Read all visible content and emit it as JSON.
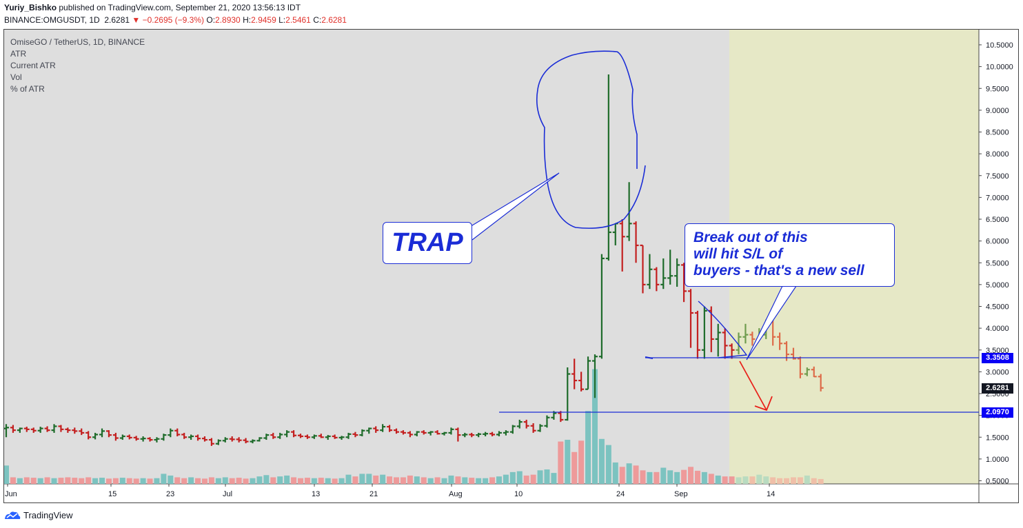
{
  "header": {
    "author": "Yuriy_Bishko",
    "published_text": "published on TradingView.com, September 21, 2020 13:56:13 IDT",
    "symbol": "BINANCE:OMGUSDT, 1D",
    "last": "2.6281",
    "change": "▼ −0.2695 (−9.3%)",
    "open_label": "O:",
    "open": "2.8930",
    "high_label": "H:",
    "high": "2.9459",
    "low_label": "L:",
    "low": "2.5461",
    "close_label": "C:",
    "close": "2.6281"
  },
  "legend": {
    "title": "OmiseGO / TetherUS, 1D, BINANCE",
    "items": [
      "ATR",
      "Current ATR",
      "Vol",
      "% of ATR"
    ]
  },
  "annotations": {
    "trap": "TRAP",
    "break_lines": [
      "Break out of this",
      "will hit S/L of",
      "buyers - that's a new sell"
    ]
  },
  "price_badges": {
    "level_upper": "3.3508",
    "last_price": "2.6281",
    "level_lower": "2.0970"
  },
  "footer": {
    "brand": "TradingView"
  },
  "colors": {
    "up": "#1e6b2a",
    "down": "#c31f1f",
    "up_faded": "#6f9c4e",
    "down_faded": "#dd6a48",
    "vol_up": "#7cc3c0",
    "vol_down": "#ee9a9a",
    "vol_up_faded": "#b9dbc0",
    "vol_down_faded": "#f0bfa8",
    "drawing": "#1a2cd6",
    "arrow": "#e8211a",
    "background": "#dedede",
    "highlight_zone": "#e6e8c6"
  },
  "chart_data": {
    "type": "ohlc",
    "y_axis": {
      "ticks": [
        "0.5000",
        "1.0000",
        "1.5000",
        "2.0000",
        "2.5000",
        "3.0000",
        "3.5000",
        "4.0000",
        "4.5000",
        "5.0000",
        "5.5000",
        "6.0000",
        "6.5000",
        "7.0000",
        "7.5000",
        "8.0000",
        "8.5000",
        "9.0000",
        "9.5000",
        "10.0000",
        "10.5000"
      ]
    },
    "x_axis": {
      "tick_labels": [
        "Jun",
        "15",
        "23",
        "Jul",
        "13",
        "21",
        "Aug",
        "10",
        "24",
        "Sep",
        "14"
      ]
    },
    "horizontal_levels": [
      3.3508,
      2.097
    ],
    "bars": [
      [
        1.7,
        1.8,
        1.5,
        1.72
      ],
      [
        1.72,
        1.78,
        1.6,
        1.66
      ],
      [
        1.66,
        1.72,
        1.6,
        1.7
      ],
      [
        1.7,
        1.74,
        1.62,
        1.68
      ],
      [
        1.68,
        1.72,
        1.6,
        1.65
      ],
      [
        1.65,
        1.74,
        1.6,
        1.7
      ],
      [
        1.7,
        1.75,
        1.62,
        1.66
      ],
      [
        1.66,
        1.8,
        1.6,
        1.75
      ],
      [
        1.75,
        1.78,
        1.62,
        1.68
      ],
      [
        1.68,
        1.72,
        1.6,
        1.66
      ],
      [
        1.66,
        1.72,
        1.58,
        1.64
      ],
      [
        1.64,
        1.7,
        1.55,
        1.6
      ],
      [
        1.6,
        1.64,
        1.45,
        1.5
      ],
      [
        1.5,
        1.6,
        1.45,
        1.56
      ],
      [
        1.56,
        1.7,
        1.5,
        1.64
      ],
      [
        1.64,
        1.66,
        1.5,
        1.55
      ],
      [
        1.55,
        1.6,
        1.42,
        1.48
      ],
      [
        1.48,
        1.56,
        1.44,
        1.52
      ],
      [
        1.52,
        1.56,
        1.45,
        1.49
      ],
      [
        1.49,
        1.53,
        1.42,
        1.46
      ],
      [
        1.46,
        1.52,
        1.4,
        1.47
      ],
      [
        1.47,
        1.5,
        1.4,
        1.44
      ],
      [
        1.44,
        1.5,
        1.38,
        1.46
      ],
      [
        1.46,
        1.58,
        1.42,
        1.55
      ],
      [
        1.55,
        1.7,
        1.5,
        1.65
      ],
      [
        1.65,
        1.7,
        1.52,
        1.56
      ],
      [
        1.56,
        1.6,
        1.46,
        1.5
      ],
      [
        1.5,
        1.56,
        1.44,
        1.52
      ],
      [
        1.52,
        1.56,
        1.42,
        1.47
      ],
      [
        1.47,
        1.52,
        1.4,
        1.44
      ],
      [
        1.44,
        1.48,
        1.3,
        1.35
      ],
      [
        1.35,
        1.45,
        1.32,
        1.42
      ],
      [
        1.42,
        1.5,
        1.38,
        1.46
      ],
      [
        1.46,
        1.52,
        1.4,
        1.45
      ],
      [
        1.45,
        1.5,
        1.38,
        1.43
      ],
      [
        1.43,
        1.48,
        1.36,
        1.4
      ],
      [
        1.4,
        1.45,
        1.36,
        1.42
      ],
      [
        1.42,
        1.5,
        1.4,
        1.48
      ],
      [
        1.48,
        1.58,
        1.44,
        1.55
      ],
      [
        1.55,
        1.6,
        1.46,
        1.5
      ],
      [
        1.5,
        1.6,
        1.46,
        1.56
      ],
      [
        1.56,
        1.66,
        1.5,
        1.62
      ],
      [
        1.62,
        1.66,
        1.5,
        1.54
      ],
      [
        1.54,
        1.58,
        1.48,
        1.52
      ],
      [
        1.52,
        1.56,
        1.46,
        1.5
      ],
      [
        1.5,
        1.56,
        1.46,
        1.53
      ],
      [
        1.53,
        1.58,
        1.48,
        1.5
      ],
      [
        1.5,
        1.55,
        1.44,
        1.52
      ],
      [
        1.52,
        1.56,
        1.46,
        1.49
      ],
      [
        1.49,
        1.53,
        1.44,
        1.5
      ],
      [
        1.5,
        1.6,
        1.46,
        1.57
      ],
      [
        1.57,
        1.62,
        1.5,
        1.55
      ],
      [
        1.55,
        1.68,
        1.52,
        1.65
      ],
      [
        1.65,
        1.72,
        1.58,
        1.7
      ],
      [
        1.7,
        1.75,
        1.6,
        1.66
      ],
      [
        1.66,
        1.8,
        1.62,
        1.74
      ],
      [
        1.74,
        1.78,
        1.62,
        1.66
      ],
      [
        1.66,
        1.7,
        1.58,
        1.62
      ],
      [
        1.62,
        1.66,
        1.56,
        1.6
      ],
      [
        1.6,
        1.64,
        1.5,
        1.56
      ],
      [
        1.56,
        1.64,
        1.52,
        1.62
      ],
      [
        1.62,
        1.66,
        1.56,
        1.6
      ],
      [
        1.6,
        1.64,
        1.54,
        1.62
      ],
      [
        1.62,
        1.66,
        1.56,
        1.58
      ],
      [
        1.58,
        1.62,
        1.54,
        1.6
      ],
      [
        1.6,
        1.72,
        1.56,
        1.68
      ],
      [
        1.68,
        1.72,
        1.4,
        1.55
      ],
      [
        1.55,
        1.6,
        1.5,
        1.56
      ],
      [
        1.56,
        1.6,
        1.5,
        1.55
      ],
      [
        1.55,
        1.6,
        1.5,
        1.57
      ],
      [
        1.57,
        1.62,
        1.52,
        1.58
      ],
      [
        1.58,
        1.62,
        1.52,
        1.56
      ],
      [
        1.56,
        1.64,
        1.52,
        1.6
      ],
      [
        1.6,
        1.66,
        1.54,
        1.62
      ],
      [
        1.62,
        1.78,
        1.58,
        1.75
      ],
      [
        1.75,
        1.9,
        1.7,
        1.85
      ],
      [
        1.85,
        1.9,
        1.7,
        1.76
      ],
      [
        1.76,
        1.82,
        1.6,
        1.65
      ],
      [
        1.65,
        1.8,
        1.62,
        1.76
      ],
      [
        1.76,
        2.0,
        1.72,
        1.95
      ],
      [
        1.95,
        2.1,
        1.9,
        2.05
      ],
      [
        2.05,
        2.1,
        1.85,
        1.9
      ],
      [
        1.9,
        3.1,
        1.88,
        2.95
      ],
      [
        2.95,
        3.3,
        2.6,
        2.8
      ],
      [
        2.8,
        3.0,
        2.55,
        2.6
      ],
      [
        2.6,
        3.35,
        2.6,
        3.25
      ],
      [
        3.25,
        3.4,
        2.4,
        3.35
      ],
      [
        3.35,
        5.7,
        3.3,
        5.6
      ],
      [
        5.6,
        9.82,
        5.55,
        6.2
      ],
      [
        6.2,
        6.4,
        5.9,
        6.4
      ],
      [
        6.4,
        6.5,
        5.3,
        6.1
      ],
      [
        6.1,
        7.35,
        6.0,
        6.4
      ],
      [
        6.4,
        6.45,
        5.5,
        5.9
      ],
      [
        5.9,
        5.9,
        4.8,
        5.0
      ],
      [
        5.0,
        5.7,
        4.9,
        5.35
      ],
      [
        5.35,
        5.4,
        4.85,
        5.0
      ],
      [
        5.0,
        5.6,
        4.9,
        5.15
      ],
      [
        5.15,
        5.8,
        5.0,
        5.2
      ],
      [
        5.2,
        5.6,
        4.95,
        5.45
      ],
      [
        5.45,
        5.5,
        4.6,
        4.85
      ],
      [
        4.85,
        4.9,
        3.55,
        4.35
      ],
      [
        4.35,
        4.4,
        3.3,
        3.5
      ],
      [
        3.5,
        4.5,
        3.3,
        4.4
      ],
      [
        4.4,
        4.5,
        3.45,
        3.75
      ],
      [
        3.75,
        4.1,
        3.35,
        3.9
      ],
      [
        3.9,
        4.0,
        3.3,
        3.6
      ],
      [
        3.6,
        3.65,
        3.3,
        3.5
      ],
      [
        3.5,
        3.9,
        3.4,
        3.8
      ],
      [
        3.8,
        4.1,
        3.65,
        3.85
      ],
      [
        3.85,
        3.92,
        3.6,
        3.75
      ],
      [
        3.75,
        4.0,
        3.72,
        3.85
      ],
      [
        3.85,
        4.2,
        3.75,
        4.15
      ],
      [
        4.15,
        4.18,
        3.6,
        3.8
      ],
      [
        3.8,
        3.9,
        3.5,
        3.65
      ],
      [
        3.65,
        3.7,
        3.25,
        3.4
      ],
      [
        3.4,
        3.55,
        3.28,
        3.3
      ],
      [
        3.3,
        3.35,
        2.85,
        2.95
      ],
      [
        2.95,
        3.1,
        2.9,
        3.05
      ],
      [
        3.05,
        3.12,
        2.88,
        2.89
      ],
      [
        2.89,
        2.95,
        2.55,
        2.63
      ]
    ],
    "volume": [
      0.85,
      0.58,
      0.56,
      0.58,
      0.57,
      0.56,
      0.58,
      0.56,
      0.57,
      0.58,
      0.57,
      0.56,
      0.58,
      0.56,
      0.57,
      0.55,
      0.56,
      0.57,
      0.56,
      0.55,
      0.56,
      0.55,
      0.56,
      0.66,
      0.62,
      0.58,
      0.56,
      0.58,
      0.56,
      0.55,
      0.58,
      0.56,
      0.58,
      0.56,
      0.57,
      0.55,
      0.56,
      0.6,
      0.63,
      0.58,
      0.6,
      0.62,
      0.58,
      0.56,
      0.57,
      0.56,
      0.57,
      0.56,
      0.55,
      0.56,
      0.64,
      0.6,
      0.66,
      0.66,
      0.62,
      0.64,
      0.6,
      0.58,
      0.58,
      0.62,
      0.6,
      0.58,
      0.56,
      0.58,
      0.56,
      0.62,
      0.6,
      0.58,
      0.57,
      0.56,
      0.56,
      0.58,
      0.6,
      0.64,
      0.7,
      0.72,
      0.62,
      0.64,
      0.74,
      0.76,
      0.68,
      1.4,
      1.44,
      1.16,
      1.42,
      2.1,
      3.06,
      1.46,
      1.32,
      0.92,
      0.82,
      0.9,
      0.85,
      0.74,
      0.7,
      0.7,
      0.8,
      0.74,
      0.7,
      0.75,
      0.82,
      0.73,
      0.7,
      0.66,
      0.62,
      0.6,
      0.6,
      0.58,
      0.6,
      0.6,
      0.64,
      0.6,
      0.58,
      0.56,
      0.56,
      0.58,
      0.58,
      0.62,
      0.56,
      0.54
    ]
  }
}
